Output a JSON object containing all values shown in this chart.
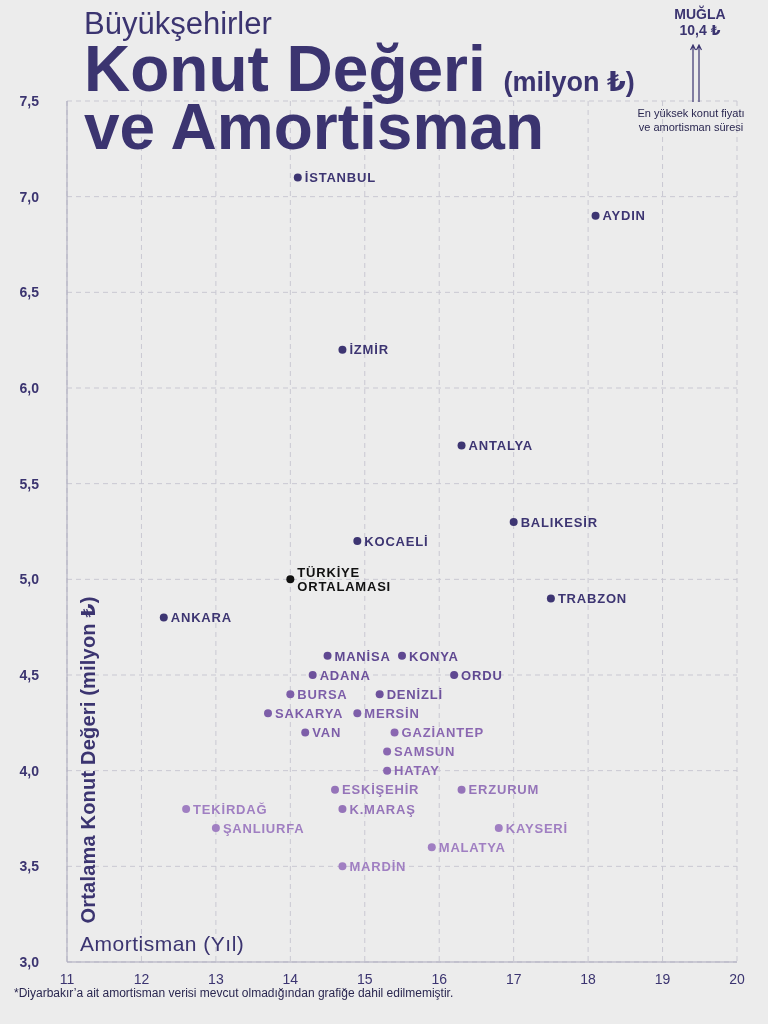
{
  "chart_data": {
    "type": "scatter",
    "subtitle": "Büyükşehirler",
    "title": "Konut Değeri (milyon ₺)\nve Amortisman",
    "xlabel": "Amortisman (Yıl)",
    "ylabel": "Ortalama Konut Değeri (milyon ₺)",
    "annotations": [
      "MUĞLA\n10,4 ₺",
      "En yüksek konut fiyatı\nve amortisman süresi",
      "*Diyarbakır’a ait amortisman verisi mevcut olmadığından grafiğe dahil edilmemiştir."
    ],
    "xlim": [
      11,
      20
    ],
    "xticks": [
      11,
      12,
      13,
      14,
      15,
      16,
      17,
      18,
      19,
      20
    ],
    "ylim": [
      3,
      7.5
    ],
    "yticks": [
      {
        "value": 3,
        "label": "3,0"
      },
      {
        "value": 3.5,
        "label": "3,5"
      },
      {
        "value": 4,
        "label": "4,0"
      },
      {
        "value": 4.5,
        "label": "4,5"
      },
      {
        "value": 5,
        "label": "5,0"
      },
      {
        "value": 5.5,
        "label": "5,5"
      },
      {
        "value": 6,
        "label": "6,0"
      },
      {
        "value": 6.5,
        "label": "6,5"
      },
      {
        "value": 7,
        "label": "7,0"
      },
      {
        "value": 7.5,
        "label": "7,5"
      }
    ],
    "grid": true,
    "marker": "circle",
    "series": [
      {
        "name": "İSTANBUL",
        "color": "#3d3572",
        "x": [
          14.1
        ],
        "values": [
          7.1
        ]
      },
      {
        "name": "AYDIN",
        "color": "#3d3572",
        "x": [
          18.1
        ],
        "values": [
          6.9
        ]
      },
      {
        "name": "İZMİR",
        "color": "#3d3572",
        "x": [
          14.7
        ],
        "values": [
          6.2
        ]
      },
      {
        "name": "ANTALYA",
        "color": "#3d3572",
        "x": [
          16.3
        ],
        "values": [
          5.7
        ]
      },
      {
        "name": "BALIKESİR",
        "color": "#3d3572",
        "x": [
          17.0
        ],
        "values": [
          5.3
        ]
      },
      {
        "name": "KOCAELİ",
        "color": "#3d3572",
        "x": [
          14.9
        ],
        "values": [
          5.2
        ]
      },
      {
        "name": "TÜRKİYE\nORTALAMASI",
        "color": "#111111",
        "x": [
          14.0
        ],
        "values": [
          5.0
        ]
      },
      {
        "name": "TRABZON",
        "color": "#3d3572",
        "x": [
          17.5
        ],
        "values": [
          4.9
        ]
      },
      {
        "name": "ANKARA",
        "color": "#3d3572",
        "x": [
          12.3
        ],
        "values": [
          4.8
        ]
      },
      {
        "name": "MANİSA",
        "color": "#5f4891",
        "x": [
          14.5
        ],
        "values": [
          4.6
        ]
      },
      {
        "name": "KONYA",
        "color": "#5f4891",
        "x": [
          15.5
        ],
        "values": [
          4.6
        ]
      },
      {
        "name": "ORDU",
        "color": "#5f4891",
        "x": [
          16.2
        ],
        "values": [
          4.5
        ]
      },
      {
        "name": "ADANA",
        "color": "#6e529c",
        "x": [
          14.3
        ],
        "values": [
          4.5
        ]
      },
      {
        "name": "DENİZLİ",
        "color": "#6e529c",
        "x": [
          15.2
        ],
        "values": [
          4.4
        ]
      },
      {
        "name": "BURSA",
        "color": "#7d5ea9",
        "x": [
          14.0
        ],
        "values": [
          4.4
        ]
      },
      {
        "name": "SAKARYA",
        "color": "#7d5ea9",
        "x": [
          13.7
        ],
        "values": [
          4.3
        ]
      },
      {
        "name": "MERSİN",
        "color": "#7d5ea9",
        "x": [
          14.9
        ],
        "values": [
          4.3
        ]
      },
      {
        "name": "VAN",
        "color": "#7d5ea9",
        "x": [
          14.2
        ],
        "values": [
          4.2
        ]
      },
      {
        "name": "GAZİANTEP",
        "color": "#8a67b1",
        "x": [
          15.4
        ],
        "values": [
          4.2
        ]
      },
      {
        "name": "SAMSUN",
        "color": "#8a67b1",
        "x": [
          15.3
        ],
        "values": [
          4.1
        ]
      },
      {
        "name": "HATAY",
        "color": "#8a67b1",
        "x": [
          15.3
        ],
        "values": [
          4.0
        ]
      },
      {
        "name": "ERZURUM",
        "color": "#9574b9",
        "x": [
          16.3
        ],
        "values": [
          3.9
        ]
      },
      {
        "name": "ESKİŞEHİR",
        "color": "#9574b9",
        "x": [
          14.6
        ],
        "values": [
          3.9
        ]
      },
      {
        "name": "K.MARAŞ",
        "color": "#9574b9",
        "x": [
          14.7
        ],
        "values": [
          3.8
        ]
      },
      {
        "name": "TEKİRDAĞ",
        "color": "#a07fc2",
        "x": [
          12.6
        ],
        "values": [
          3.8
        ]
      },
      {
        "name": "ŞANLIURFA",
        "color": "#a07fc2",
        "x": [
          13.0
        ],
        "values": [
          3.7
        ]
      },
      {
        "name": "KAYSERİ",
        "color": "#a07fc2",
        "x": [
          16.8
        ],
        "values": [
          3.7
        ]
      },
      {
        "name": "MALATYA",
        "color": "#a07fc2",
        "x": [
          15.9
        ],
        "values": [
          3.6
        ]
      },
      {
        "name": "MARDİN",
        "color": "#a07fc2",
        "x": [
          14.7
        ],
        "values": [
          3.5
        ]
      }
    ]
  }
}
